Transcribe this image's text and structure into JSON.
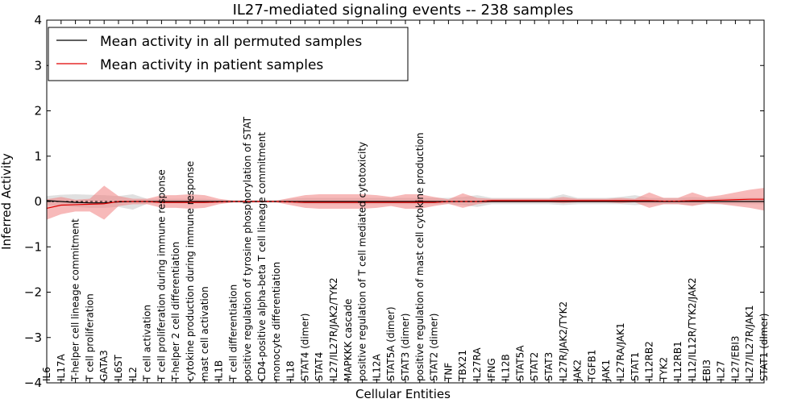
{
  "chart_data": {
    "type": "line",
    "title": "IL27-mediated signaling events -- 238 samples",
    "xlabel": "Cellular Entities",
    "ylabel": "Inferred Activity",
    "ylim": [
      -4,
      4
    ],
    "yticks": [
      4,
      3,
      2,
      1,
      0,
      -1,
      -2,
      -3,
      -4
    ],
    "ytick_labels": [
      "4",
      "3",
      "2",
      "1",
      "0",
      "−1",
      "−2",
      "−3",
      "−4"
    ],
    "grid": false,
    "legend_position": "top-left",
    "categories": [
      "IL6",
      "IL17A",
      "T-helper cell lineage commitment",
      "T cell proliferation",
      "GATA3",
      "IL6ST",
      "IL2",
      "T cell activation",
      "T cell proliferation during immune response",
      "T-helper 2 cell differentiation",
      "cytokine production during immune response",
      "mast cell activation",
      "IL1B",
      "T cell differentiation",
      "positive regulation of tyrosine phosphorylation of STAT",
      "CD4-positive alpha-beta T cell lineage commitment",
      "monocyte differentiation",
      "IL18",
      "STAT4 (dimer)",
      "STAT4",
      "IL27/IL27R/JAK2/TYK2",
      "MAPKKK cascade",
      "positive regulation of T cell mediated cytotoxicity",
      "IL12A",
      "STAT5A (dimer)",
      "STAT3 (dimer)",
      "positive regulation of mast cell cytokine production",
      "STAT2 (dimer)",
      "TNF",
      "TBX21",
      "IL27RA",
      "IFNG",
      "IL12B",
      "STAT5A",
      "STAT2",
      "STAT3",
      "IL27R/JAK2/TYK2",
      "JAK2",
      "TGFB1",
      "JAK1",
      "IL27RA/JAK1",
      "STAT1",
      "IL12RB2",
      "TYK2",
      "IL12RB1",
      "IL12/IL12R/TYK2/JAK2",
      "EBI3",
      "IL27",
      "IL27/EBI3",
      "IL27/IL27R/JAK1",
      "STAT1 (dimer)"
    ],
    "series": [
      {
        "name": "Mean activity in all permuted samples",
        "color": "#000000",
        "band_color": "#bbbbbb",
        "values": [
          0.02,
          0.0,
          -0.02,
          -0.03,
          -0.03,
          -0.01,
          0.0,
          0.0,
          0.0,
          0.0,
          0.0,
          0.0,
          0.0,
          0.0,
          0.0,
          0.0,
          0.0,
          0.0,
          0.0,
          0.0,
          0.0,
          0.0,
          0.0,
          0.0,
          0.0,
          0.0,
          0.0,
          0.0,
          0.0,
          0.0,
          0.0,
          0.0,
          0.0,
          0.0,
          0.0,
          0.0,
          0.0,
          0.0,
          0.0,
          0.0,
          0.0,
          0.0,
          0.0,
          0.0,
          0.0,
          0.0,
          0.0,
          0.0,
          0.0,
          0.0,
          0.0
        ],
        "lower": [
          -0.08,
          -0.1,
          -0.12,
          -0.14,
          -0.14,
          -0.12,
          -0.18,
          -0.05,
          -0.04,
          -0.04,
          -0.04,
          -0.04,
          -0.03,
          -0.02,
          -0.02,
          -0.02,
          -0.02,
          -0.04,
          -0.06,
          -0.06,
          -0.06,
          -0.06,
          -0.06,
          -0.06,
          -0.06,
          -0.06,
          -0.06,
          -0.06,
          -0.06,
          -0.08,
          -0.12,
          -0.06,
          -0.06,
          -0.06,
          -0.06,
          -0.06,
          -0.08,
          -0.06,
          -0.06,
          -0.06,
          -0.06,
          -0.08,
          -0.06,
          -0.06,
          -0.06,
          -0.08,
          -0.06,
          -0.06,
          -0.06,
          -0.06,
          -0.06
        ],
        "upper": [
          0.12,
          0.15,
          0.16,
          0.15,
          0.14,
          0.12,
          0.16,
          0.06,
          0.06,
          0.06,
          0.06,
          0.06,
          0.04,
          0.03,
          0.03,
          0.03,
          0.03,
          0.06,
          0.08,
          0.08,
          0.08,
          0.08,
          0.08,
          0.08,
          0.08,
          0.08,
          0.08,
          0.08,
          0.08,
          0.1,
          0.14,
          0.08,
          0.08,
          0.08,
          0.08,
          0.08,
          0.16,
          0.08,
          0.08,
          0.08,
          0.1,
          0.14,
          0.08,
          0.08,
          0.08,
          0.1,
          0.08,
          0.08,
          0.08,
          0.08,
          0.08
        ]
      },
      {
        "name": "Mean activity in patient samples",
        "color": "#e00000",
        "band_color": "#f08080",
        "values": [
          -0.15,
          -0.08,
          -0.07,
          -0.06,
          -0.05,
          0.0,
          0.0,
          0.0,
          -0.02,
          -0.02,
          -0.02,
          -0.02,
          -0.01,
          0.0,
          0.0,
          0.0,
          0.0,
          -0.01,
          -0.02,
          -0.02,
          -0.02,
          -0.02,
          -0.02,
          -0.02,
          -0.02,
          -0.02,
          -0.02,
          -0.02,
          0.0,
          0.0,
          0.0,
          0.02,
          0.02,
          0.02,
          0.02,
          0.02,
          0.02,
          0.02,
          0.02,
          0.02,
          0.02,
          0.02,
          0.02,
          0.01,
          0.01,
          0.02,
          0.02,
          0.03,
          0.04,
          0.05,
          0.05
        ],
        "lower": [
          -0.4,
          -0.28,
          -0.22,
          -0.22,
          -0.4,
          -0.1,
          -0.06,
          -0.06,
          -0.14,
          -0.14,
          -0.16,
          -0.14,
          -0.06,
          -0.02,
          -0.02,
          -0.02,
          -0.02,
          -0.08,
          -0.14,
          -0.16,
          -0.16,
          -0.16,
          -0.16,
          -0.14,
          -0.1,
          -0.16,
          -0.16,
          -0.1,
          -0.05,
          -0.14,
          -0.06,
          -0.02,
          -0.02,
          -0.02,
          -0.02,
          -0.02,
          -0.04,
          -0.02,
          -0.02,
          -0.02,
          -0.04,
          -0.02,
          -0.14,
          -0.06,
          -0.06,
          -0.1,
          -0.04,
          -0.06,
          -0.1,
          -0.14,
          -0.2
        ],
        "upper": [
          0.05,
          0.1,
          0.04,
          0.06,
          0.35,
          0.12,
          0.06,
          0.06,
          0.14,
          0.14,
          0.16,
          0.14,
          0.06,
          0.02,
          0.02,
          0.02,
          0.02,
          0.08,
          0.14,
          0.16,
          0.16,
          0.16,
          0.16,
          0.14,
          0.1,
          0.16,
          0.16,
          0.1,
          0.05,
          0.18,
          0.08,
          0.06,
          0.06,
          0.06,
          0.06,
          0.06,
          0.1,
          0.06,
          0.06,
          0.06,
          0.08,
          0.06,
          0.2,
          0.08,
          0.08,
          0.2,
          0.1,
          0.14,
          0.2,
          0.26,
          0.3
        ]
      }
    ]
  }
}
